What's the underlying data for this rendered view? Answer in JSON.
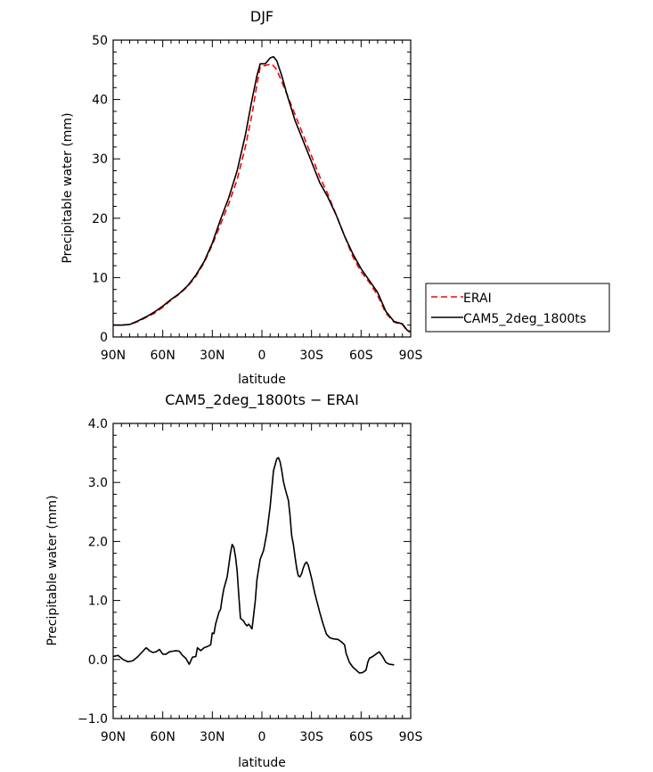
{
  "chart_data": [
    {
      "type": "line",
      "title": "DJF",
      "xlabel": "latitude",
      "ylabel": "Precipitable water (mm)",
      "xlim": [
        90,
        -90
      ],
      "ylim": [
        0,
        50
      ],
      "xticks": [
        90,
        60,
        30,
        0,
        -30,
        -60,
        -90
      ],
      "xtick_labels": [
        "90N",
        "60N",
        "30N",
        "0",
        "30S",
        "60S",
        "90S"
      ],
      "yticks": [
        0,
        10,
        20,
        30,
        40,
        50
      ],
      "ytick_labels": [
        "0",
        "10",
        "20",
        "30",
        "40",
        "50"
      ],
      "grid": false,
      "legend": "right",
      "series": [
        {
          "name": "ERAI",
          "color": "#ff0000",
          "dash": true,
          "points": [
            [
              90,
              2
            ],
            [
              85,
              2
            ],
            [
              80,
              2.1
            ],
            [
              75,
              2.6
            ],
            [
              70,
              3.3
            ],
            [
              65,
              4
            ],
            [
              60,
              5
            ],
            [
              55,
              6.2
            ],
            [
              50,
              7.2
            ],
            [
              45,
              8.5
            ],
            [
              40,
              10.2
            ],
            [
              35,
              12.5
            ],
            [
              30,
              15.5
            ],
            [
              25,
              19
            ],
            [
              20,
              22.5
            ],
            [
              15,
              26.5
            ],
            [
              10,
              32
            ],
            [
              6,
              37.5
            ],
            [
              3,
              42.5
            ],
            [
              1,
              45.5
            ],
            [
              -3,
              45.8
            ],
            [
              -6,
              46
            ],
            [
              -9,
              45
            ],
            [
              -12,
              43
            ],
            [
              -15,
              41
            ],
            [
              -20,
              37.5
            ],
            [
              -25,
              34
            ],
            [
              -30,
              30.5
            ],
            [
              -35,
              27
            ],
            [
              -40,
              24
            ],
            [
              -45,
              20.5
            ],
            [
              -50,
              17
            ],
            [
              -55,
              13.5
            ],
            [
              -60,
              11
            ],
            [
              -65,
              9.2
            ],
            [
              -70,
              7
            ],
            [
              -75,
              4
            ],
            [
              -80,
              2.5
            ],
            [
              -85,
              2.1
            ],
            [
              -88,
              1
            ],
            [
              -90,
              0.8
            ]
          ]
        },
        {
          "name": "CAM5_2deg_1800ts",
          "color": "#000000",
          "dash": false,
          "points": [
            [
              90,
              2
            ],
            [
              85,
              2
            ],
            [
              80,
              2.1
            ],
            [
              75,
              2.7
            ],
            [
              70,
              3.4
            ],
            [
              65,
              4.2
            ],
            [
              60,
              5.2
            ],
            [
              55,
              6.3
            ],
            [
              50,
              7.3
            ],
            [
              45,
              8.6
            ],
            [
              40,
              10.4
            ],
            [
              35,
              12.7
            ],
            [
              30,
              15.8
            ],
            [
              25,
              19.8
            ],
            [
              20,
              23.5
            ],
            [
              15,
              28
            ],
            [
              10,
              34
            ],
            [
              6,
              40
            ],
            [
              3,
              44
            ],
            [
              1,
              46
            ],
            [
              -2,
              46
            ],
            [
              -5,
              47
            ],
            [
              -7,
              47.2
            ],
            [
              -9,
              46.5
            ],
            [
              -12,
              44
            ],
            [
              -15,
              41
            ],
            [
              -20,
              36.5
            ],
            [
              -25,
              33
            ],
            [
              -30,
              29.5
            ],
            [
              -35,
              26
            ],
            [
              -40,
              23.5
            ],
            [
              -45,
              20.5
            ],
            [
              -50,
              17
            ],
            [
              -55,
              14
            ],
            [
              -60,
              11.5
            ],
            [
              -65,
              9.5
            ],
            [
              -70,
              7.5
            ],
            [
              -75,
              4.3
            ],
            [
              -80,
              2.6
            ],
            [
              -85,
              2.2
            ],
            [
              -88,
              1.1
            ],
            [
              -90,
              0.9
            ]
          ]
        }
      ]
    },
    {
      "type": "line",
      "title": "CAM5_2deg_1800ts − ERAI",
      "xlabel": "latitude",
      "ylabel": "Precipitable water (mm)",
      "xlim": [
        90,
        -90
      ],
      "ylim": [
        -1,
        4
      ],
      "xticks": [
        90,
        60,
        30,
        0,
        -30,
        -60,
        -90
      ],
      "xtick_labels": [
        "90N",
        "60N",
        "30N",
        "0",
        "30S",
        "60S",
        "90S"
      ],
      "yticks": [
        -1,
        0,
        1,
        2,
        3,
        4
      ],
      "ytick_labels": [
        "−1.0",
        "0.0",
        "1.0",
        "2.0",
        "3.0",
        "4.0"
      ],
      "grid": false,
      "series": [
        {
          "color": "#000000",
          "dash": false,
          "points": [
            [
              90,
              0.05
            ],
            [
              87,
              0.07
            ],
            [
              84,
              0
            ],
            [
              81,
              -0.04
            ],
            [
              78,
              -0.02
            ],
            [
              75,
              0.05
            ],
            [
              72,
              0.14
            ],
            [
              70,
              0.2
            ],
            [
              68,
              0.15
            ],
            [
              66,
              0.12
            ],
            [
              64,
              0.13
            ],
            [
              62,
              0.17
            ],
            [
              60,
              0.09
            ],
            [
              58,
              0.09
            ],
            [
              56,
              0.13
            ],
            [
              54,
              0.14
            ],
            [
              52,
              0.15
            ],
            [
              50,
              0.14
            ],
            [
              48,
              0.07
            ],
            [
              46,
              0.02
            ],
            [
              44,
              -0.08
            ],
            [
              42,
              0.04
            ],
            [
              40,
              0.05
            ],
            [
              39,
              0.2
            ],
            [
              37,
              0.15
            ],
            [
              35,
              0.2
            ],
            [
              33,
              0.22
            ],
            [
              31,
              0.25
            ],
            [
              30,
              0.45
            ],
            [
              29,
              0.44
            ],
            [
              28,
              0.6
            ],
            [
              26,
              0.8
            ],
            [
              25,
              0.85
            ],
            [
              24,
              1.05
            ],
            [
              23,
              1.2
            ],
            [
              21,
              1.4
            ],
            [
              19,
              1.8
            ],
            [
              18,
              1.95
            ],
            [
              17,
              1.9
            ],
            [
              16,
              1.75
            ],
            [
              15,
              1.5
            ],
            [
              14,
              1.1
            ],
            [
              13,
              0.7
            ],
            [
              11,
              0.65
            ],
            [
              10,
              0.6
            ],
            [
              9,
              0.57
            ],
            [
              8,
              0.6
            ],
            [
              6,
              0.52
            ],
            [
              5,
              0.75
            ],
            [
              4,
              1
            ],
            [
              3,
              1.35
            ],
            [
              1,
              1.7
            ],
            [
              -1,
              1.85
            ],
            [
              -3,
              2.15
            ],
            [
              -5,
              2.6
            ],
            [
              -7,
              3.2
            ],
            [
              -9,
              3.4
            ],
            [
              -10,
              3.42
            ],
            [
              -11,
              3.35
            ],
            [
              -12,
              3.2
            ],
            [
              -13,
              3.02
            ],
            [
              -14,
              2.9
            ],
            [
              -15,
              2.8
            ],
            [
              -16,
              2.7
            ],
            [
              -17,
              2.45
            ],
            [
              -18,
              2.1
            ],
            [
              -19,
              1.95
            ],
            [
              -20,
              1.75
            ],
            [
              -21,
              1.55
            ],
            [
              -22,
              1.42
            ],
            [
              -23,
              1.4
            ],
            [
              -24,
              1.45
            ],
            [
              -25,
              1.55
            ],
            [
              -26,
              1.62
            ],
            [
              -27,
              1.65
            ],
            [
              -28,
              1.6
            ],
            [
              -30,
              1.38
            ],
            [
              -32,
              1.12
            ],
            [
              -35,
              0.8
            ],
            [
              -37,
              0.6
            ],
            [
              -39,
              0.43
            ],
            [
              -41,
              0.37
            ],
            [
              -43,
              0.35
            ],
            [
              -46,
              0.34
            ],
            [
              -48,
              0.3
            ],
            [
              -50,
              0.25
            ],
            [
              -51,
              0.1
            ],
            [
              -53,
              -0.05
            ],
            [
              -55,
              -0.13
            ],
            [
              -57,
              -0.18
            ],
            [
              -59,
              -0.23
            ],
            [
              -61,
              -0.22
            ],
            [
              -63,
              -0.18
            ],
            [
              -64,
              -0.05
            ],
            [
              -65,
              0.02
            ],
            [
              -67,
              0.05
            ],
            [
              -69,
              0.09
            ],
            [
              -71,
              0.13
            ],
            [
              -73,
              0.05
            ],
            [
              -75,
              -0.05
            ],
            [
              -77,
              -0.08
            ],
            [
              -80,
              -0.09
            ]
          ]
        }
      ]
    }
  ]
}
